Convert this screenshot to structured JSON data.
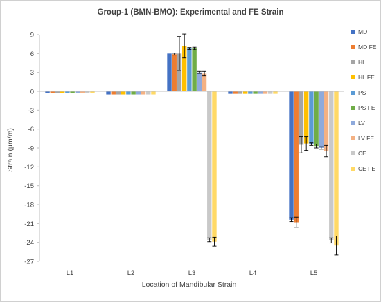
{
  "chart_data": {
    "type": "bar",
    "title": "Group-1 (BMN-BMO): Experimental and FE Strain",
    "xlabel": "Location of Mandibular Strain",
    "ylabel": "Strain (µm/m)",
    "ylim": [
      -27,
      9
    ],
    "yticks": [
      9,
      6,
      3,
      0,
      -3,
      -6,
      -9,
      -12,
      -15,
      -18,
      -21,
      -24,
      -27
    ],
    "grid": false,
    "legend_position": "right",
    "categories": [
      "L1",
      "L2",
      "L3",
      "L4",
      "L5"
    ],
    "series": [
      {
        "name": "MD",
        "color": "#4472c4",
        "values": [
          -0.3,
          -0.5,
          6.0,
          -0.4,
          -20.4
        ],
        "errors": [
          0.05,
          0.05,
          0.1,
          0.05,
          0.3
        ]
      },
      {
        "name": "MD FE",
        "color": "#ed7d31",
        "values": [
          -0.3,
          -0.5,
          5.9,
          -0.4,
          -20.8
        ],
        "errors": [
          0.05,
          0.05,
          0.15,
          0.05,
          0.8
        ]
      },
      {
        "name": "HL",
        "color": "#a5a5a5",
        "values": [
          -0.3,
          -0.5,
          6.0,
          -0.4,
          -8.5
        ],
        "errors": [
          0.05,
          0.05,
          2.7,
          0.05,
          1.3
        ]
      },
      {
        "name": "HL FE",
        "color": "#ffc000",
        "values": [
          -0.3,
          -0.5,
          7.2,
          -0.4,
          -8.3
        ],
        "errors": [
          0.05,
          0.05,
          1.9,
          0.05,
          1.1
        ]
      },
      {
        "name": "PS",
        "color": "#5b9bd5",
        "values": [
          -0.3,
          -0.5,
          6.8,
          -0.4,
          -8.4
        ],
        "errors": [
          0.05,
          0.05,
          0.15,
          0.05,
          0.2
        ]
      },
      {
        "name": "PS FE",
        "color": "#70ad47",
        "values": [
          -0.3,
          -0.5,
          6.8,
          -0.4,
          -8.7
        ],
        "errors": [
          0.05,
          0.05,
          0.2,
          0.05,
          0.3
        ]
      },
      {
        "name": "LV",
        "color": "#8faadc",
        "values": [
          -0.3,
          -0.5,
          3.0,
          -0.4,
          -9.0
        ],
        "errors": [
          0.05,
          0.05,
          0.15,
          0.05,
          0.2
        ]
      },
      {
        "name": "LV FE",
        "color": "#f4b183",
        "values": [
          -0.3,
          -0.5,
          2.8,
          -0.4,
          -9.5
        ],
        "errors": [
          0.05,
          0.05,
          0.35,
          0.05,
          0.9
        ]
      },
      {
        "name": "CE",
        "color": "#c9c9c9",
        "values": [
          -0.3,
          -0.5,
          -23.6,
          -0.4,
          -23.7
        ],
        "errors": [
          0.05,
          0.05,
          0.3,
          0.05,
          0.4
        ]
      },
      {
        "name": "CE FE",
        "color": "#ffd966",
        "values": [
          -0.3,
          -0.5,
          -23.9,
          -0.4,
          -24.5
        ],
        "errors": [
          0.05,
          0.05,
          0.7,
          0.05,
          1.5
        ]
      }
    ]
  }
}
